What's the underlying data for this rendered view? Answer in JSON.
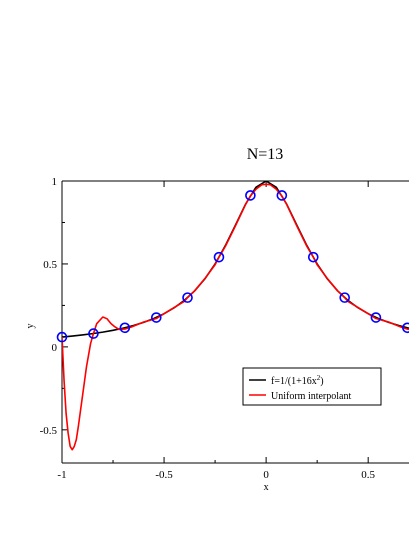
{
  "chart_data": {
    "type": "line",
    "title": "N=13",
    "xlabel": "x",
    "ylabel": "y",
    "xlim": [
      -1,
      0.7
    ],
    "ylim": [
      -0.7,
      1
    ],
    "x_ticks": [
      -1,
      -0.5,
      0,
      0.5
    ],
    "x_tick_labels": [
      "-1",
      "-0.5",
      "0",
      "0.5"
    ],
    "y_ticks": [
      -0.5,
      0,
      0.5,
      1
    ],
    "y_tick_labels": [
      "-0.5",
      "0",
      "0.5",
      "1"
    ],
    "grid": false,
    "legend_placement": "lower-right",
    "series": [
      {
        "name": "f=1/(1+16x^2)",
        "legend_text": "f=1/(1+16x",
        "legend_superscript": "2",
        "legend_suffix": ")",
        "color": "#000000",
        "x": [
          -1.0,
          -0.95,
          -0.9,
          -0.85,
          -0.8,
          -0.75,
          -0.7,
          -0.65,
          -0.6,
          -0.55,
          -0.5,
          -0.45,
          -0.4,
          -0.35,
          -0.3,
          -0.25,
          -0.2,
          -0.15,
          -0.1,
          -0.05,
          0.0,
          0.05,
          0.1,
          0.15,
          0.2,
          0.25,
          0.3,
          0.35,
          0.4,
          0.45,
          0.5,
          0.55,
          0.6,
          0.65,
          0.7
        ],
        "y": [
          0.059,
          0.065,
          0.072,
          0.08,
          0.089,
          0.1,
          0.113,
          0.129,
          0.148,
          0.171,
          0.2,
          0.236,
          0.281,
          0.338,
          0.41,
          0.5,
          0.61,
          0.735,
          0.862,
          0.962,
          1.0,
          0.962,
          0.862,
          0.735,
          0.61,
          0.5,
          0.41,
          0.338,
          0.281,
          0.236,
          0.2,
          0.171,
          0.148,
          0.129,
          0.113
        ]
      },
      {
        "name": "Uniform interpolant",
        "legend_text": "Uniform interpolant",
        "color": "#ff0000",
        "x": [
          -1.0,
          -0.99,
          -0.98,
          -0.97,
          -0.96,
          -0.95,
          -0.94,
          -0.93,
          -0.92,
          -0.9,
          -0.88,
          -0.86,
          -0.846,
          -0.83,
          -0.8,
          -0.78,
          -0.76,
          -0.74,
          -0.72,
          -0.69,
          -0.66,
          -0.63,
          -0.6,
          -0.57,
          -0.538,
          -0.5,
          -0.45,
          -0.4,
          -0.385,
          -0.35,
          -0.3,
          -0.25,
          -0.231,
          -0.2,
          -0.15,
          -0.1,
          -0.077,
          -0.05,
          -0.02,
          0.0,
          0.02,
          0.05,
          0.077,
          0.1,
          0.15,
          0.2,
          0.231,
          0.25,
          0.3,
          0.35,
          0.385,
          0.4,
          0.45,
          0.5,
          0.538,
          0.57,
          0.6,
          0.63,
          0.66,
          0.69,
          0.7
        ],
        "y": [
          0.059,
          -0.2,
          -0.4,
          -0.52,
          -0.6,
          -0.62,
          -0.6,
          -0.56,
          -0.48,
          -0.3,
          -0.12,
          0.02,
          0.08,
          0.14,
          0.18,
          0.17,
          0.14,
          0.12,
          0.105,
          0.108,
          0.12,
          0.135,
          0.15,
          0.16,
          0.171,
          0.2,
          0.238,
          0.275,
          0.297,
          0.338,
          0.412,
          0.495,
          0.541,
          0.605,
          0.73,
          0.86,
          0.91,
          0.95,
          0.978,
          0.98,
          0.978,
          0.95,
          0.91,
          0.86,
          0.73,
          0.605,
          0.541,
          0.495,
          0.412,
          0.338,
          0.297,
          0.275,
          0.238,
          0.2,
          0.171,
          0.16,
          0.15,
          0.135,
          0.12,
          0.108,
          0.105
        ]
      }
    ],
    "markers": {
      "name": "interpolation nodes",
      "color": "#0000ff",
      "x": [
        -1.0,
        -0.846,
        -0.692,
        -0.538,
        -0.385,
        -0.231,
        -0.077,
        0.077,
        0.231,
        0.385,
        0.538,
        0.692
      ],
      "y": [
        0.059,
        0.08,
        0.115,
        0.177,
        0.297,
        0.541,
        0.913,
        0.913,
        0.541,
        0.297,
        0.177,
        0.115
      ]
    }
  }
}
